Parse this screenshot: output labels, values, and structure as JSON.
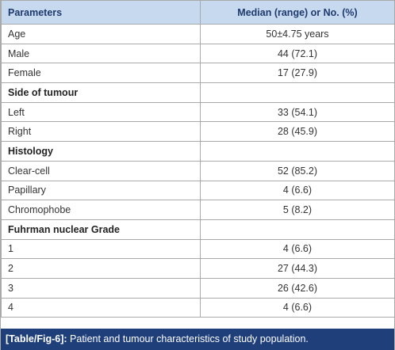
{
  "table": {
    "header": [
      "Parameters",
      "Median (range) or No. (%)"
    ],
    "rows": [
      [
        "Age",
        "50±4.75 years"
      ],
      [
        "Male",
        "44 (72.1)"
      ],
      [
        "Female",
        "17 (27.9)"
      ],
      [
        "Side of tumour"
      ],
      [
        "Left",
        "33 (54.1)"
      ],
      [
        "Right",
        "28 (45.9)"
      ],
      [
        "Histology"
      ],
      [
        "Clear-cell",
        "52 (85.2)"
      ],
      [
        "Papillary",
        "4 (6.6)"
      ],
      [
        "Chromophobe",
        "5 (8.2)"
      ],
      [
        "Fuhrman nuclear Grade"
      ],
      [
        "1",
        "4 (6.6)"
      ],
      [
        "2",
        "27 (44.3)"
      ],
      [
        "3",
        "26 (42.6)"
      ],
      [
        "4",
        "4 (6.6)"
      ]
    ]
  },
  "caption": {
    "label": "[Table/Fig-6]:",
    "text": "Patient and tumour characteristics of study population."
  }
}
